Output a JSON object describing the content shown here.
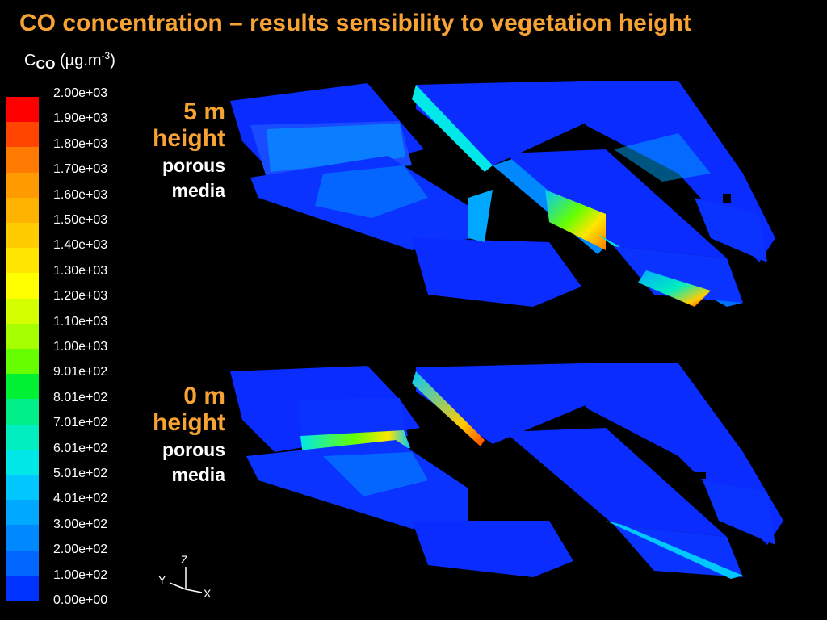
{
  "title": "CO concentration – results sensibility to vegetation height",
  "colorbar": {
    "unit_prefix": "C",
    "unit_sub": "CO",
    "unit_mid": " (µg.m",
    "unit_sup": "-3",
    "unit_suffix": ")",
    "ticks": [
      "2.00e+03",
      "1.90e+03",
      "1.80e+03",
      "1.70e+03",
      "1.60e+03",
      "1.50e+03",
      "1.40e+03",
      "1.30e+03",
      "1.20e+03",
      "1.10e+03",
      "1.00e+03",
      "9.01e+02",
      "8.01e+02",
      "7.01e+02",
      "6.01e+02",
      "5.01e+02",
      "4.01e+02",
      "3.00e+02",
      "2.00e+02",
      "1.00e+02",
      "0.00e+00"
    ],
    "colors": [
      "#ff0000",
      "#ff4500",
      "#ff7a00",
      "#ff9a00",
      "#ffb300",
      "#ffcc00",
      "#ffe600",
      "#ffff00",
      "#d4ff00",
      "#a6ff00",
      "#66ff00",
      "#00f033",
      "#00ee88",
      "#00eec0",
      "#00e8e8",
      "#00c8ff",
      "#00a8ff",
      "#0088ff",
      "#0066ff",
      "#0033ff"
    ]
  },
  "panels": [
    {
      "height_label": "5 m",
      "height_word": "height",
      "media_line1": "porous",
      "media_line2": "media"
    },
    {
      "height_label": "0 m",
      "height_word": "height",
      "media_line1": "porous",
      "media_line2": "media"
    }
  ],
  "axes_triad": {
    "z": "Z",
    "y": "Y",
    "x": "X"
  },
  "chart_data": {
    "type": "heatmap",
    "title": "CO concentration – results sensibility to vegetation height",
    "colorbar_range": [
      0,
      2000
    ],
    "colorbar_ticks": [
      2000,
      1900,
      1800,
      1700,
      1600,
      1500,
      1400,
      1300,
      1200,
      1100,
      1000,
      901,
      801,
      701,
      601,
      501,
      401,
      300,
      200,
      100,
      0
    ],
    "panels": [
      "5 m height porous media",
      "0 m height porous media"
    ]
  }
}
